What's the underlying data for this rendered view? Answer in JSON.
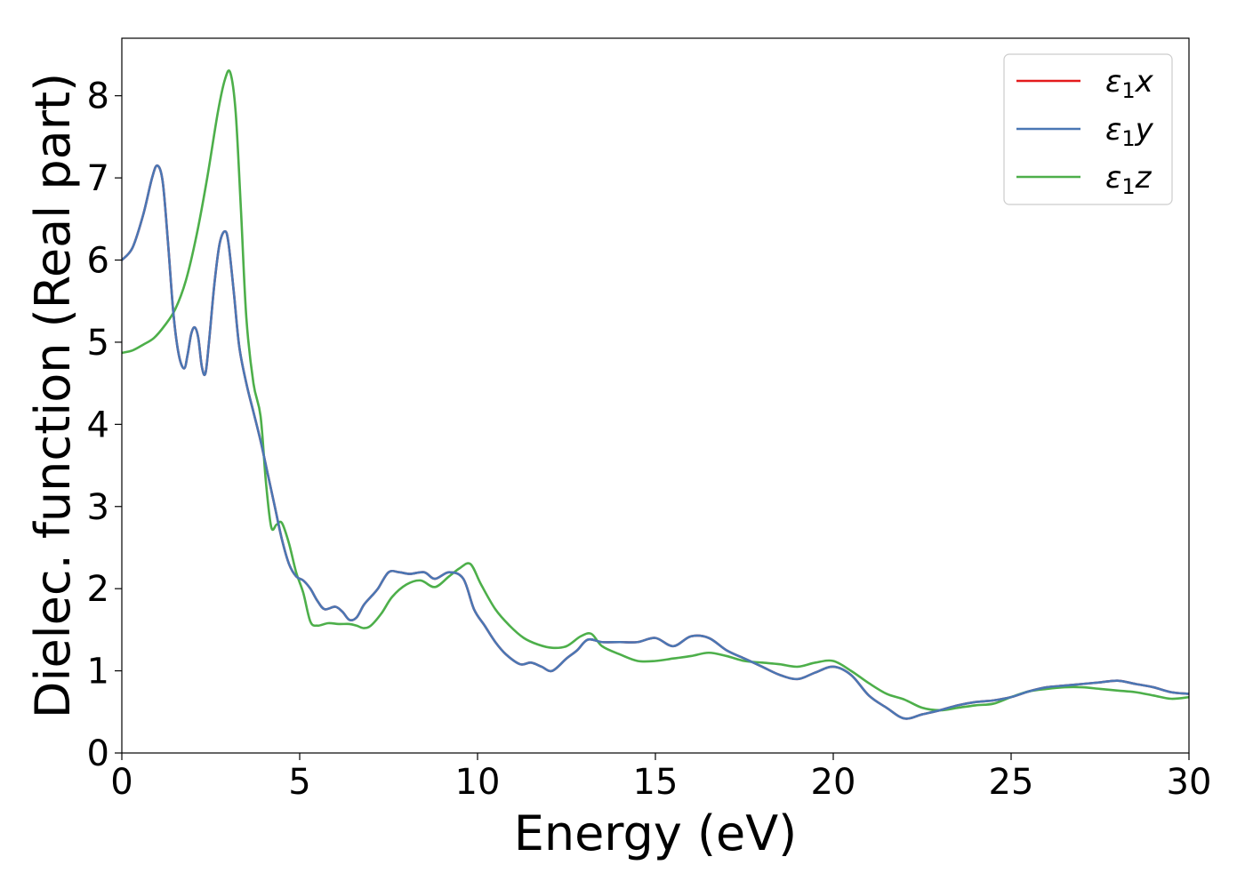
{
  "chart_data": {
    "type": "line",
    "title": "",
    "xlabel": "Energy (eV)",
    "ylabel": "Dielec. function (Real part)",
    "xlim": [
      0,
      30
    ],
    "ylim": [
      0,
      8.7
    ],
    "xticks": [
      "0",
      "5",
      "10",
      "15",
      "20",
      "25",
      "30"
    ],
    "yticks": [
      "0",
      "1",
      "2",
      "3",
      "4",
      "5",
      "6",
      "7",
      "8"
    ],
    "grid": false,
    "legend_position": "top-right",
    "series": [
      {
        "name": "ε1x",
        "label_main": "ε",
        "label_sub": "1",
        "label_var": "x",
        "color": "#e41a1c",
        "x": [
          0,
          0.3,
          0.6,
          0.85,
          1.0,
          1.15,
          1.3,
          1.45,
          1.6,
          1.75,
          1.85,
          1.95,
          2.05,
          2.15,
          2.25,
          2.35,
          2.45,
          2.6,
          2.75,
          2.9,
          3.0,
          3.15,
          3.3,
          3.5,
          3.7,
          3.9,
          4.1,
          4.3,
          4.5,
          4.7,
          4.9,
          5.1,
          5.3,
          5.5,
          5.7,
          6.0,
          6.2,
          6.4,
          6.6,
          6.8,
          7.0,
          7.2,
          7.5,
          7.8,
          8.1,
          8.5,
          8.8,
          9.2,
          9.6,
          9.9,
          10.2,
          10.5,
          10.8,
          11.2,
          11.5,
          11.8,
          12.1,
          12.5,
          12.8,
          13.1,
          13.5,
          14.0,
          14.5,
          15.0,
          15.5,
          16.0,
          16.5,
          17.0,
          17.5,
          18.0,
          18.5,
          19.0,
          19.5,
          20.0,
          20.5,
          21.0,
          21.5,
          22.0,
          22.5,
          23.0,
          23.5,
          24.0,
          24.5,
          25.0,
          25.5,
          26.0,
          26.5,
          27.0,
          27.5,
          28.0,
          28.5,
          29.0,
          29.5,
          30.0
        ],
        "y": [
          6.0,
          6.15,
          6.55,
          7.0,
          7.15,
          6.95,
          6.2,
          5.35,
          4.85,
          4.68,
          4.85,
          5.1,
          5.18,
          5.05,
          4.7,
          4.62,
          5.0,
          5.7,
          6.2,
          6.35,
          6.2,
          5.6,
          4.95,
          4.5,
          4.15,
          3.8,
          3.4,
          3.0,
          2.6,
          2.3,
          2.15,
          2.1,
          2.0,
          1.85,
          1.75,
          1.78,
          1.72,
          1.62,
          1.65,
          1.8,
          1.9,
          2.0,
          2.2,
          2.2,
          2.18,
          2.2,
          2.12,
          2.2,
          2.12,
          1.75,
          1.55,
          1.35,
          1.2,
          1.08,
          1.1,
          1.05,
          1.0,
          1.15,
          1.25,
          1.38,
          1.35,
          1.35,
          1.35,
          1.4,
          1.3,
          1.42,
          1.4,
          1.25,
          1.15,
          1.05,
          0.95,
          0.9,
          0.98,
          1.05,
          0.95,
          0.7,
          0.55,
          0.42,
          0.47,
          0.52,
          0.58,
          0.62,
          0.64,
          0.68,
          0.75,
          0.8,
          0.82,
          0.84,
          0.86,
          0.88,
          0.84,
          0.8,
          0.74,
          0.72
        ]
      },
      {
        "name": "ε1y",
        "label_main": "ε",
        "label_sub": "1",
        "label_var": "y",
        "color": "#4a77b4",
        "x": [
          0,
          0.3,
          0.6,
          0.85,
          1.0,
          1.15,
          1.3,
          1.45,
          1.6,
          1.75,
          1.85,
          1.95,
          2.05,
          2.15,
          2.25,
          2.35,
          2.45,
          2.6,
          2.75,
          2.9,
          3.0,
          3.15,
          3.3,
          3.5,
          3.7,
          3.9,
          4.1,
          4.3,
          4.5,
          4.7,
          4.9,
          5.1,
          5.3,
          5.5,
          5.7,
          6.0,
          6.2,
          6.4,
          6.6,
          6.8,
          7.0,
          7.2,
          7.5,
          7.8,
          8.1,
          8.5,
          8.8,
          9.2,
          9.6,
          9.9,
          10.2,
          10.5,
          10.8,
          11.2,
          11.5,
          11.8,
          12.1,
          12.5,
          12.8,
          13.1,
          13.5,
          14.0,
          14.5,
          15.0,
          15.5,
          16.0,
          16.5,
          17.0,
          17.5,
          18.0,
          18.5,
          19.0,
          19.5,
          20.0,
          20.5,
          21.0,
          21.5,
          22.0,
          22.5,
          23.0,
          23.5,
          24.0,
          24.5,
          25.0,
          25.5,
          26.0,
          26.5,
          27.0,
          27.5,
          28.0,
          28.5,
          29.0,
          29.5,
          30.0
        ],
        "y": [
          6.0,
          6.15,
          6.55,
          7.0,
          7.15,
          6.95,
          6.2,
          5.35,
          4.85,
          4.68,
          4.85,
          5.1,
          5.18,
          5.05,
          4.7,
          4.62,
          5.0,
          5.7,
          6.2,
          6.35,
          6.2,
          5.6,
          4.95,
          4.5,
          4.15,
          3.8,
          3.4,
          3.0,
          2.6,
          2.3,
          2.15,
          2.1,
          2.0,
          1.85,
          1.75,
          1.78,
          1.72,
          1.62,
          1.65,
          1.8,
          1.9,
          2.0,
          2.2,
          2.2,
          2.18,
          2.2,
          2.12,
          2.2,
          2.12,
          1.75,
          1.55,
          1.35,
          1.2,
          1.08,
          1.1,
          1.05,
          1.0,
          1.15,
          1.25,
          1.38,
          1.35,
          1.35,
          1.35,
          1.4,
          1.3,
          1.42,
          1.4,
          1.25,
          1.15,
          1.05,
          0.95,
          0.9,
          0.98,
          1.05,
          0.95,
          0.7,
          0.55,
          0.42,
          0.47,
          0.52,
          0.58,
          0.62,
          0.64,
          0.68,
          0.75,
          0.8,
          0.82,
          0.84,
          0.86,
          0.88,
          0.84,
          0.8,
          0.74,
          0.72
        ]
      },
      {
        "name": "ε1z",
        "label_main": "ε",
        "label_sub": "1",
        "label_var": "z",
        "color": "#4daf4a",
        "x": [
          0,
          0.3,
          0.6,
          0.9,
          1.2,
          1.5,
          1.8,
          2.1,
          2.4,
          2.7,
          2.9,
          3.05,
          3.2,
          3.35,
          3.5,
          3.7,
          3.9,
          4.05,
          4.2,
          4.35,
          4.5,
          4.7,
          4.9,
          5.1,
          5.3,
          5.5,
          5.8,
          6.1,
          6.4,
          6.6,
          6.8,
          7.0,
          7.3,
          7.6,
          8.0,
          8.4,
          8.8,
          9.2,
          9.5,
          9.8,
          10.1,
          10.5,
          10.9,
          11.3,
          11.7,
          12.1,
          12.5,
          12.9,
          13.2,
          13.5,
          14.0,
          14.5,
          15.0,
          15.5,
          16.0,
          16.5,
          17.0,
          17.5,
          18.0,
          18.5,
          19.0,
          19.5,
          20.0,
          20.5,
          21.0,
          21.5,
          22.0,
          22.5,
          23.0,
          23.5,
          24.0,
          24.5,
          25.0,
          25.5,
          26.0,
          26.5,
          27.0,
          27.5,
          28.0,
          28.5,
          29.0,
          29.5,
          30.0
        ],
        "y": [
          4.87,
          4.9,
          4.97,
          5.05,
          5.2,
          5.4,
          5.75,
          6.3,
          7.0,
          7.8,
          8.2,
          8.28,
          7.8,
          6.6,
          5.3,
          4.5,
          4.1,
          3.3,
          2.75,
          2.78,
          2.8,
          2.55,
          2.2,
          1.95,
          1.6,
          1.55,
          1.58,
          1.57,
          1.57,
          1.55,
          1.52,
          1.55,
          1.7,
          1.9,
          2.05,
          2.1,
          2.02,
          2.15,
          2.25,
          2.3,
          2.05,
          1.75,
          1.55,
          1.4,
          1.32,
          1.28,
          1.3,
          1.42,
          1.45,
          1.3,
          1.2,
          1.12,
          1.12,
          1.15,
          1.18,
          1.22,
          1.18,
          1.12,
          1.1,
          1.08,
          1.05,
          1.1,
          1.12,
          1.0,
          0.85,
          0.72,
          0.65,
          0.55,
          0.52,
          0.55,
          0.58,
          0.6,
          0.68,
          0.75,
          0.78,
          0.8,
          0.8,
          0.78,
          0.76,
          0.74,
          0.7,
          0.66,
          0.68
        ]
      }
    ]
  }
}
